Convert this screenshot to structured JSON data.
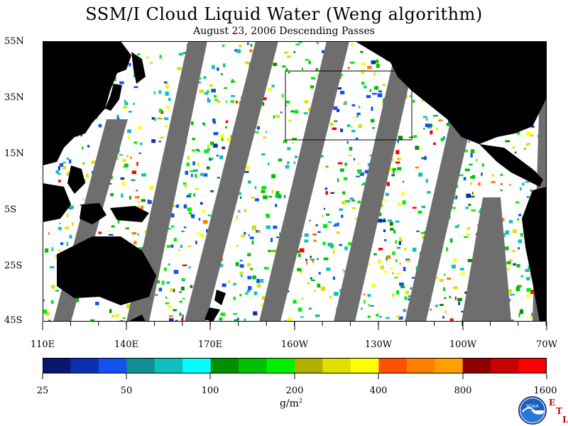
{
  "title": "SSM/I Cloud Liquid Water (Weng algorithm)",
  "subtitle": "August 23, 2006  Descending Passes",
  "lat_labels": [
    "55N",
    "35N",
    "15N",
    "5S",
    "25S",
    "45S"
  ],
  "lon_labels": [
    "110E",
    "140E",
    "170E",
    "160W",
    "130W",
    "100W",
    "70W"
  ],
  "colorbar": {
    "colors": [
      "#0a1670",
      "#0a30b0",
      "#1450f0",
      "#0f8f8f",
      "#10c0c0",
      "#00ffff",
      "#008f00",
      "#00c000",
      "#00f000",
      "#b0b000",
      "#e0e000",
      "#ffff00",
      "#ff5000",
      "#ff8000",
      "#ffa000",
      "#900000",
      "#c80000",
      "#ff0000"
    ],
    "labels": [
      "25",
      "50",
      "100",
      "200",
      "400",
      "800",
      "1600"
    ],
    "unit": "g/m",
    "unit_sup": "2"
  },
  "logo": {
    "icon": "noaa-logo",
    "text": "NOAA",
    "etl_letters": [
      "E",
      "T",
      "L"
    ]
  },
  "colors": {
    "land": "#000000",
    "no_data_swath": "#6e6e6e",
    "clear": "#ffffff",
    "box": "#000000"
  }
}
